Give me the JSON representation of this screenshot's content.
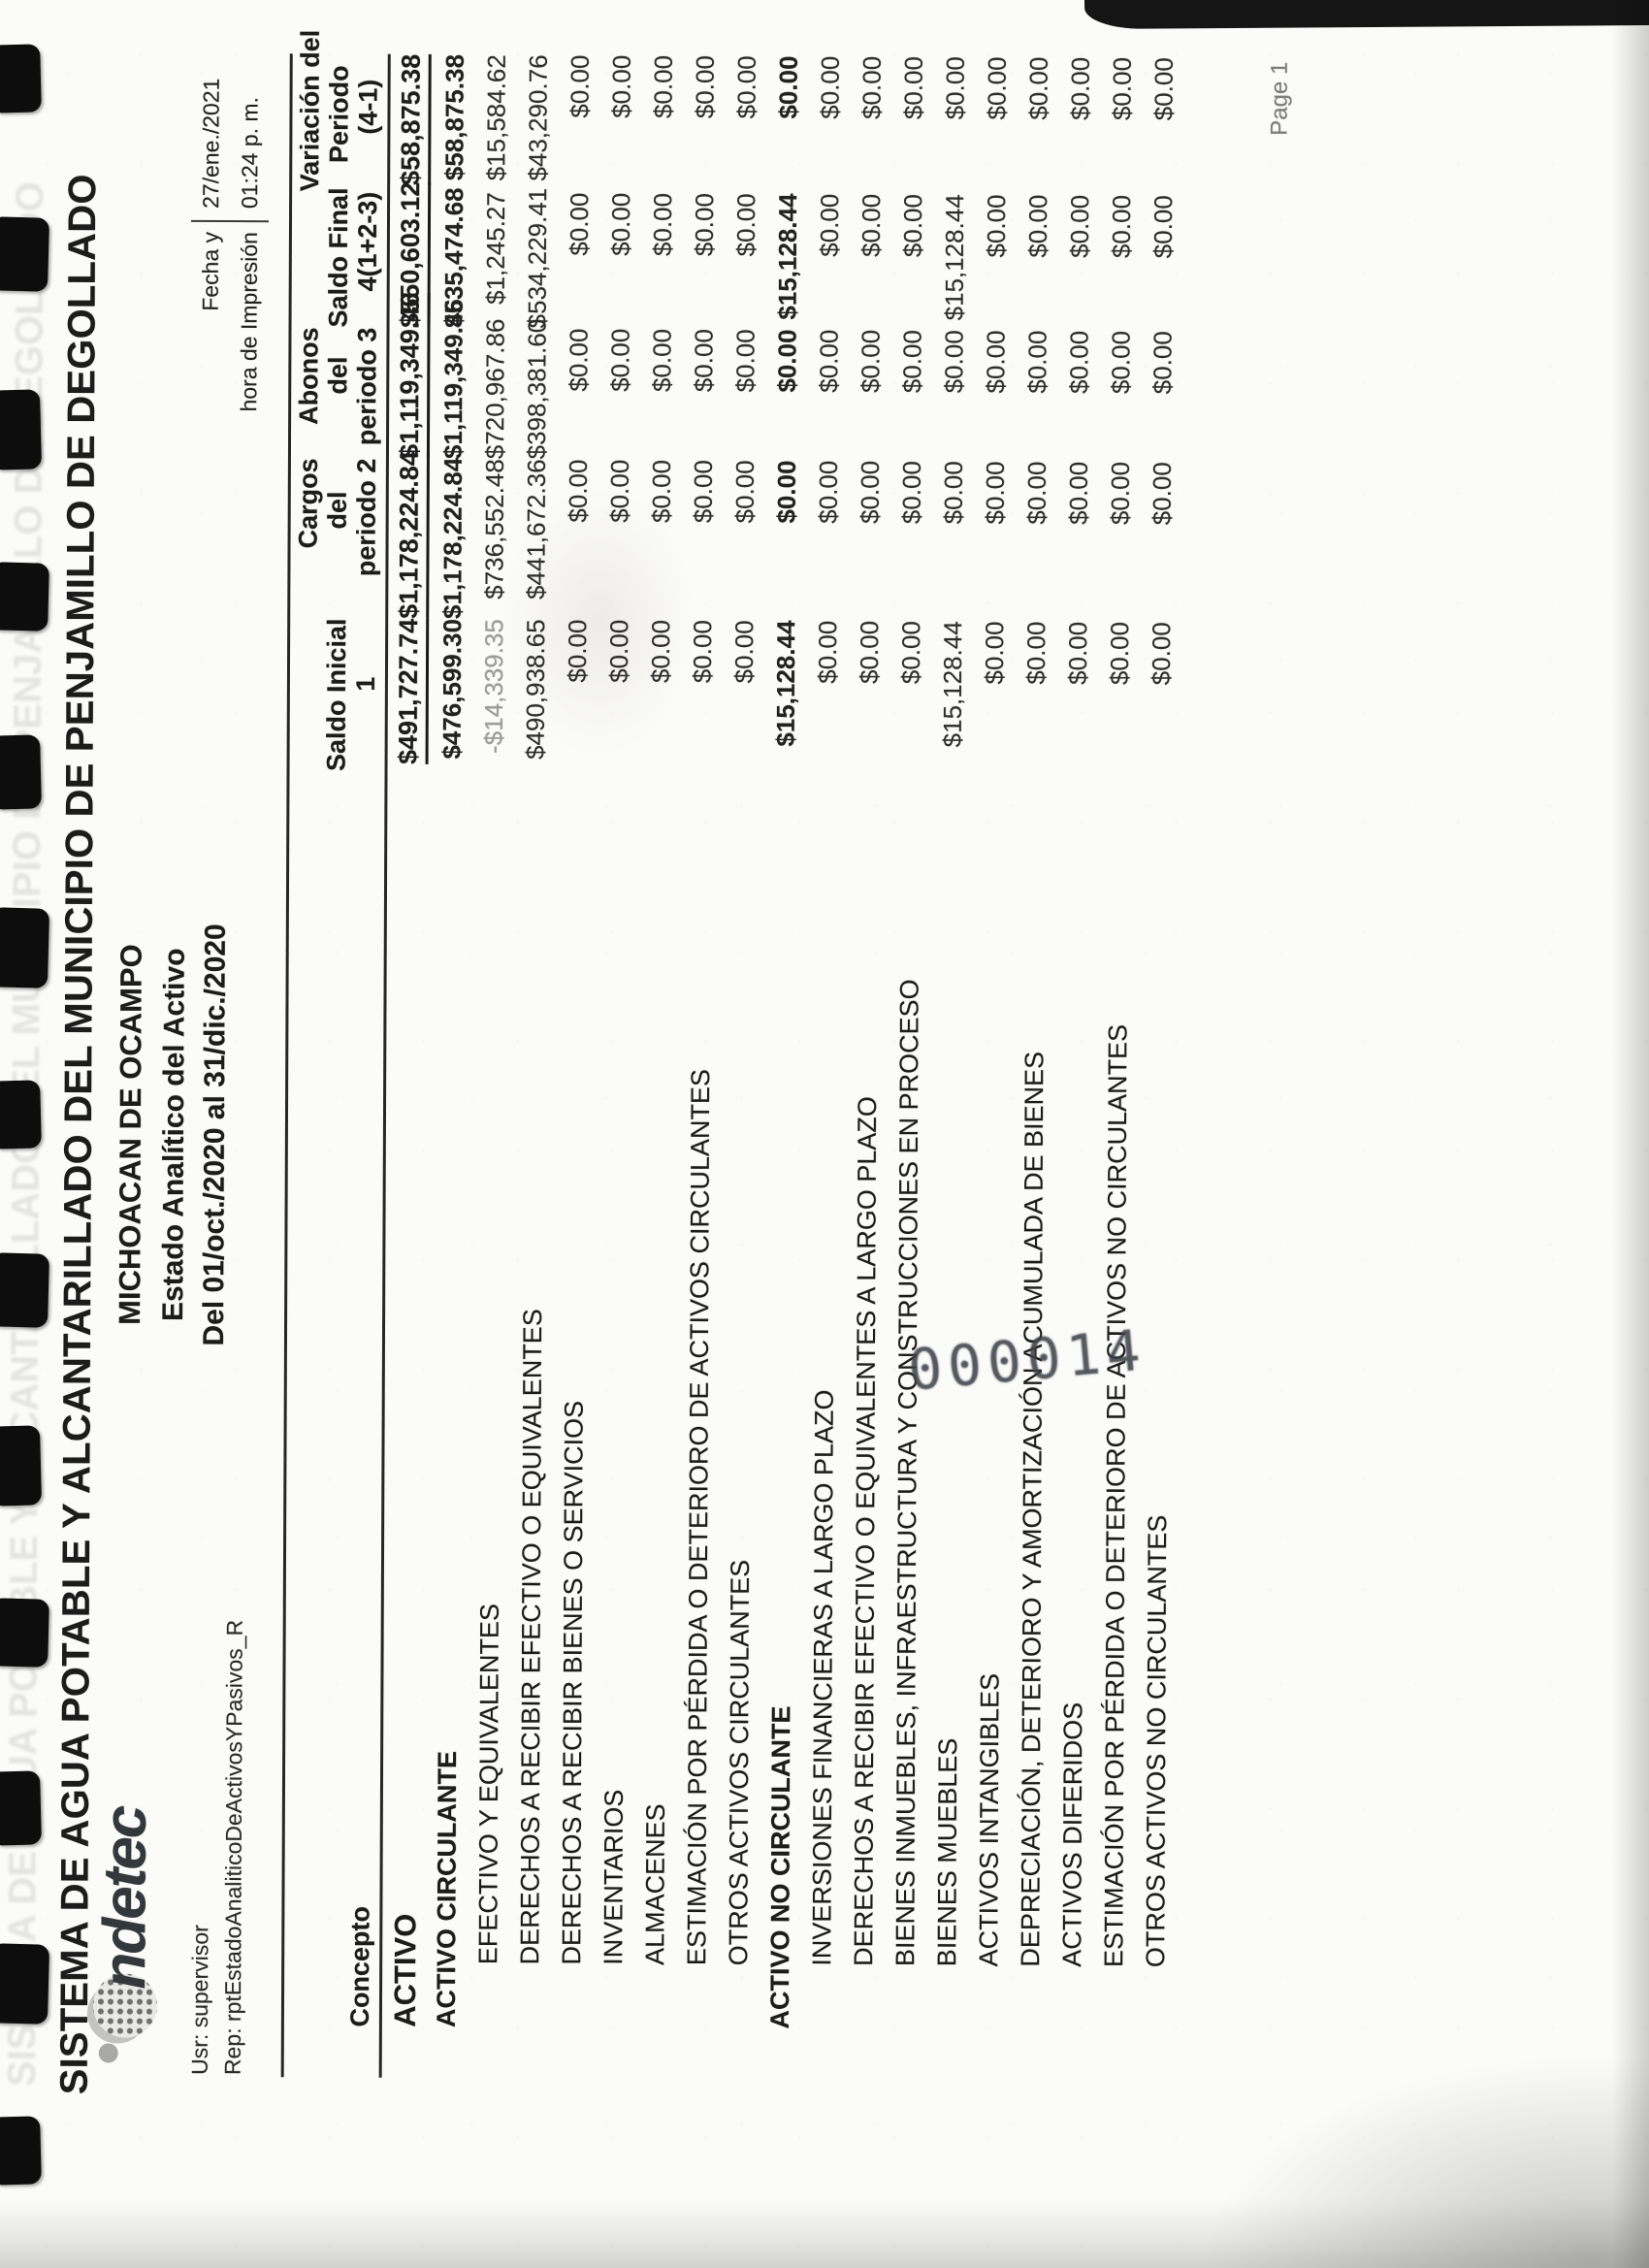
{
  "document": {
    "logo_text": "indetec",
    "title_line1": "SISTEMA DE AGUA POTABLE Y ALCANTARILLADO DEL MUNICIPIO DE PENJAMILLO DE DEGOLLADO",
    "title_line2": "MICHOACAN DE OCAMPO",
    "title_line3": "Estado Analítico del Activo",
    "title_line4": "Del 01/oct./2020 al 31/dic./2020",
    "user_line": "Usr: supervisor",
    "report_line": "Rep: rptEstadoAnaliticoDeActivosYPasivos_R",
    "print_meta": {
      "date_label": "Fecha y",
      "date_value": "27/ene./2021",
      "time_label": "hora de Impresión",
      "time_value": "01:24 p. m."
    },
    "page_label": "Page 1",
    "stamp": "000014"
  },
  "table": {
    "header": {
      "concepto": "Concepto",
      "saldo_inicial": [
        "Saldo Inicial",
        "1"
      ],
      "cargos": [
        "Cargos",
        "del",
        "periodo 2"
      ],
      "abonos": [
        "Abonos",
        "del",
        "periodo 3"
      ],
      "saldo_final": [
        "Saldo Final",
        "4(1+2-3)"
      ],
      "variacion": [
        "Variación del",
        "Periodo",
        "(4-1)"
      ]
    },
    "rows": [
      {
        "concepto": "ACTIVO",
        "level": 0,
        "style": "total",
        "underline": true,
        "values": [
          "$491,727.74",
          "$1,178,224.84",
          "$1,119,349.46",
          "$550,603.12",
          "$58,875.38"
        ]
      },
      {
        "concepto": "ACTIVO CIRCULANTE",
        "level": 1,
        "style": "section",
        "values": [
          "$476,599.30",
          "$1,178,224.84",
          "$1,119,349.46",
          "$535,474.68",
          "$58,875.38"
        ]
      },
      {
        "concepto": "EFECTIVO Y EQUIVALENTES",
        "level": 2,
        "style": "detail",
        "faded_first": true,
        "values": [
          "-$14,339.35",
          "$736,552.48",
          "$720,967.86",
          "$1,245.27",
          "$15,584.62"
        ]
      },
      {
        "concepto": "DERECHOS A RECIBIR EFECTIVO O EQUIVALENTES",
        "level": 2,
        "style": "detail",
        "values": [
          "$490,938.65",
          "$441,672.36",
          "$398,381.60",
          "$534,229.41",
          "$43,290.76"
        ]
      },
      {
        "concepto": "DERECHOS A RECIBIR BIENES O SERVICIOS",
        "level": 2,
        "style": "detail",
        "values": [
          "$0.00",
          "$0.00",
          "$0.00",
          "$0.00",
          "$0.00"
        ]
      },
      {
        "concepto": "INVENTARIOS",
        "level": 2,
        "style": "detail",
        "values": [
          "$0.00",
          "$0.00",
          "$0.00",
          "$0.00",
          "$0.00"
        ]
      },
      {
        "concepto": "ALMACENES",
        "level": 2,
        "style": "detail",
        "values": [
          "$0.00",
          "$0.00",
          "$0.00",
          "$0.00",
          "$0.00"
        ]
      },
      {
        "concepto": "ESTIMACIÓN POR PÉRDIDA O DETERIORO DE ACTIVOS CIRCULANTES",
        "level": 2,
        "style": "detail",
        "values": [
          "$0.00",
          "$0.00",
          "$0.00",
          "$0.00",
          "$0.00"
        ]
      },
      {
        "concepto": "OTROS ACTIVOS CIRCULANTES",
        "level": 2,
        "style": "detail",
        "values": [
          "$0.00",
          "$0.00",
          "$0.00",
          "$0.00",
          "$0.00"
        ]
      },
      {
        "concepto": "ACTIVO NO CIRCULANTE",
        "level": 1,
        "style": "section",
        "values": [
          "$15,128.44",
          "$0.00",
          "$0.00",
          "$15,128.44",
          "$0.00"
        ]
      },
      {
        "concepto": "INVERSIONES FINANCIERAS A LARGO PLAZO",
        "level": 2,
        "style": "detail",
        "values": [
          "$0.00",
          "$0.00",
          "$0.00",
          "$0.00",
          "$0.00"
        ]
      },
      {
        "concepto": "DERECHOS A RECIBIR EFECTIVO O EQUIVALENTES A LARGO PLAZO",
        "level": 2,
        "style": "detail",
        "values": [
          "$0.00",
          "$0.00",
          "$0.00",
          "$0.00",
          "$0.00"
        ]
      },
      {
        "concepto": "BIENES INMUEBLES, INFRAESTRUCTURA Y CONSTRUCCIONES EN PROCESO",
        "level": 2,
        "style": "detail",
        "values": [
          "$0.00",
          "$0.00",
          "$0.00",
          "$0.00",
          "$0.00"
        ]
      },
      {
        "concepto": "BIENES MUEBLES",
        "level": 2,
        "style": "detail",
        "values": [
          "$15,128.44",
          "$0.00",
          "$0.00",
          "$15,128.44",
          "$0.00"
        ]
      },
      {
        "concepto": "ACTIVOS INTANGIBLES",
        "level": 2,
        "style": "detail",
        "values": [
          "$0.00",
          "$0.00",
          "$0.00",
          "$0.00",
          "$0.00"
        ]
      },
      {
        "concepto": "DEPRECIACIÓN, DETERIORO Y AMORTIZACIÓN ACUMULADA DE BIENES",
        "level": 2,
        "style": "detail",
        "values": [
          "$0.00",
          "$0.00",
          "$0.00",
          "$0.00",
          "$0.00"
        ]
      },
      {
        "concepto": "ACTIVOS DIFERIDOS",
        "level": 2,
        "style": "detail",
        "values": [
          "$0.00",
          "$0.00",
          "$0.00",
          "$0.00",
          "$0.00"
        ]
      },
      {
        "concepto": "ESTIMACIÓN POR PÉRDIDA O DETERIORO DE ACTIVOS NO CIRCULANTES",
        "level": 2,
        "style": "detail",
        "values": [
          "$0.00",
          "$0.00",
          "$0.00",
          "$0.00",
          "$0.00"
        ]
      },
      {
        "concepto": "OTROS ACTIVOS NO CIRCULANTES",
        "level": 2,
        "style": "detail",
        "values": [
          "$0.00",
          "$0.00",
          "$0.00",
          "$0.00",
          "$0.00"
        ]
      }
    ]
  },
  "scan": {
    "binding_hole_count": 13
  }
}
